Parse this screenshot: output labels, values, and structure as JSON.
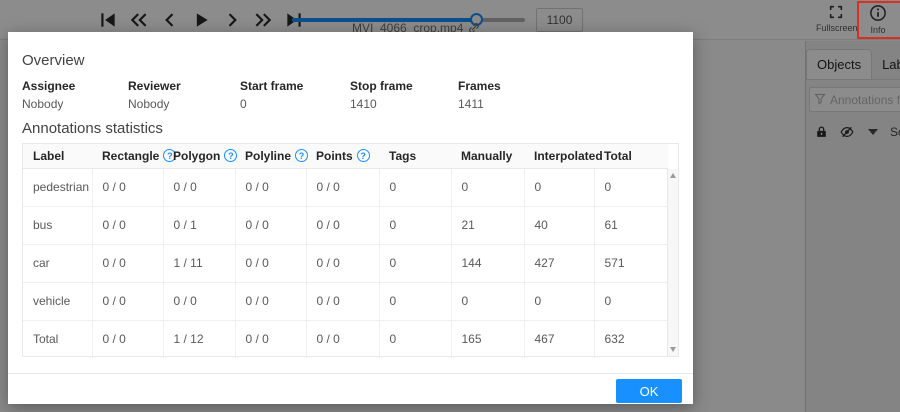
{
  "player": {
    "filename": "MVI_4066_crop.mp4",
    "frame_value": "1100",
    "slider": {
      "percent": 79,
      "value": 1100
    },
    "control_icons": [
      "first-frame-icon",
      "backward-jump-icon",
      "previous-frame-icon",
      "play-icon",
      "next-frame-icon",
      "forward-jump-icon",
      "last-frame-icon"
    ]
  },
  "topbar_right": {
    "fullscreen_label": "Fullscreen",
    "info_label": "Info"
  },
  "sidebar": {
    "tabs": [
      {
        "label": "Objects",
        "active": true
      },
      {
        "label": "Labels",
        "active": false
      }
    ],
    "filter_placeholder": "Annotations filter",
    "sort_label": "Sort by",
    "icons": [
      "lock-icon",
      "hidden-eye-icon",
      "chevron-down-icon",
      "funnel-icon"
    ]
  },
  "modal": {
    "overview_title": "Overview",
    "fields": [
      {
        "label": "Assignee",
        "value": "Nobody"
      },
      {
        "label": "Reviewer",
        "value": "Nobody"
      },
      {
        "label": "Start frame",
        "value": "0"
      },
      {
        "label": "Stop frame",
        "value": "1410"
      },
      {
        "label": "Frames",
        "value": "1411"
      }
    ],
    "stats_title": "Annotations statistics",
    "table": {
      "columns": [
        "Label",
        "Rectangle",
        "Polygon",
        "Polyline",
        "Points",
        "Tags",
        "Manually",
        "Interpolated",
        "Total"
      ],
      "help_icon_columns": [
        "Rectangle",
        "Polygon",
        "Polyline",
        "Points"
      ],
      "rows": [
        [
          "pedestrian",
          "0 / 0",
          "0 / 0",
          "0 / 0",
          "0 / 0",
          "0",
          "0",
          "0",
          "0"
        ],
        [
          "bus",
          "0 / 0",
          "0 / 1",
          "0 / 0",
          "0 / 0",
          "0",
          "21",
          "40",
          "61"
        ],
        [
          "car",
          "0 / 0",
          "1 / 11",
          "0 / 0",
          "0 / 0",
          "0",
          "144",
          "427",
          "571"
        ],
        [
          "vehicle",
          "0 / 0",
          "0 / 0",
          "0 / 0",
          "0 / 0",
          "0",
          "0",
          "0",
          "0"
        ],
        [
          "Total",
          "0 / 0",
          "1 / 12",
          "0 / 0",
          "0 / 0",
          "0",
          "165",
          "467",
          "632"
        ]
      ]
    },
    "ok_label": "OK"
  },
  "colors": {
    "accent": "#1890ff",
    "highlight_box": "#d93026",
    "mask": "rgba(0,0,0,0.45)"
  }
}
